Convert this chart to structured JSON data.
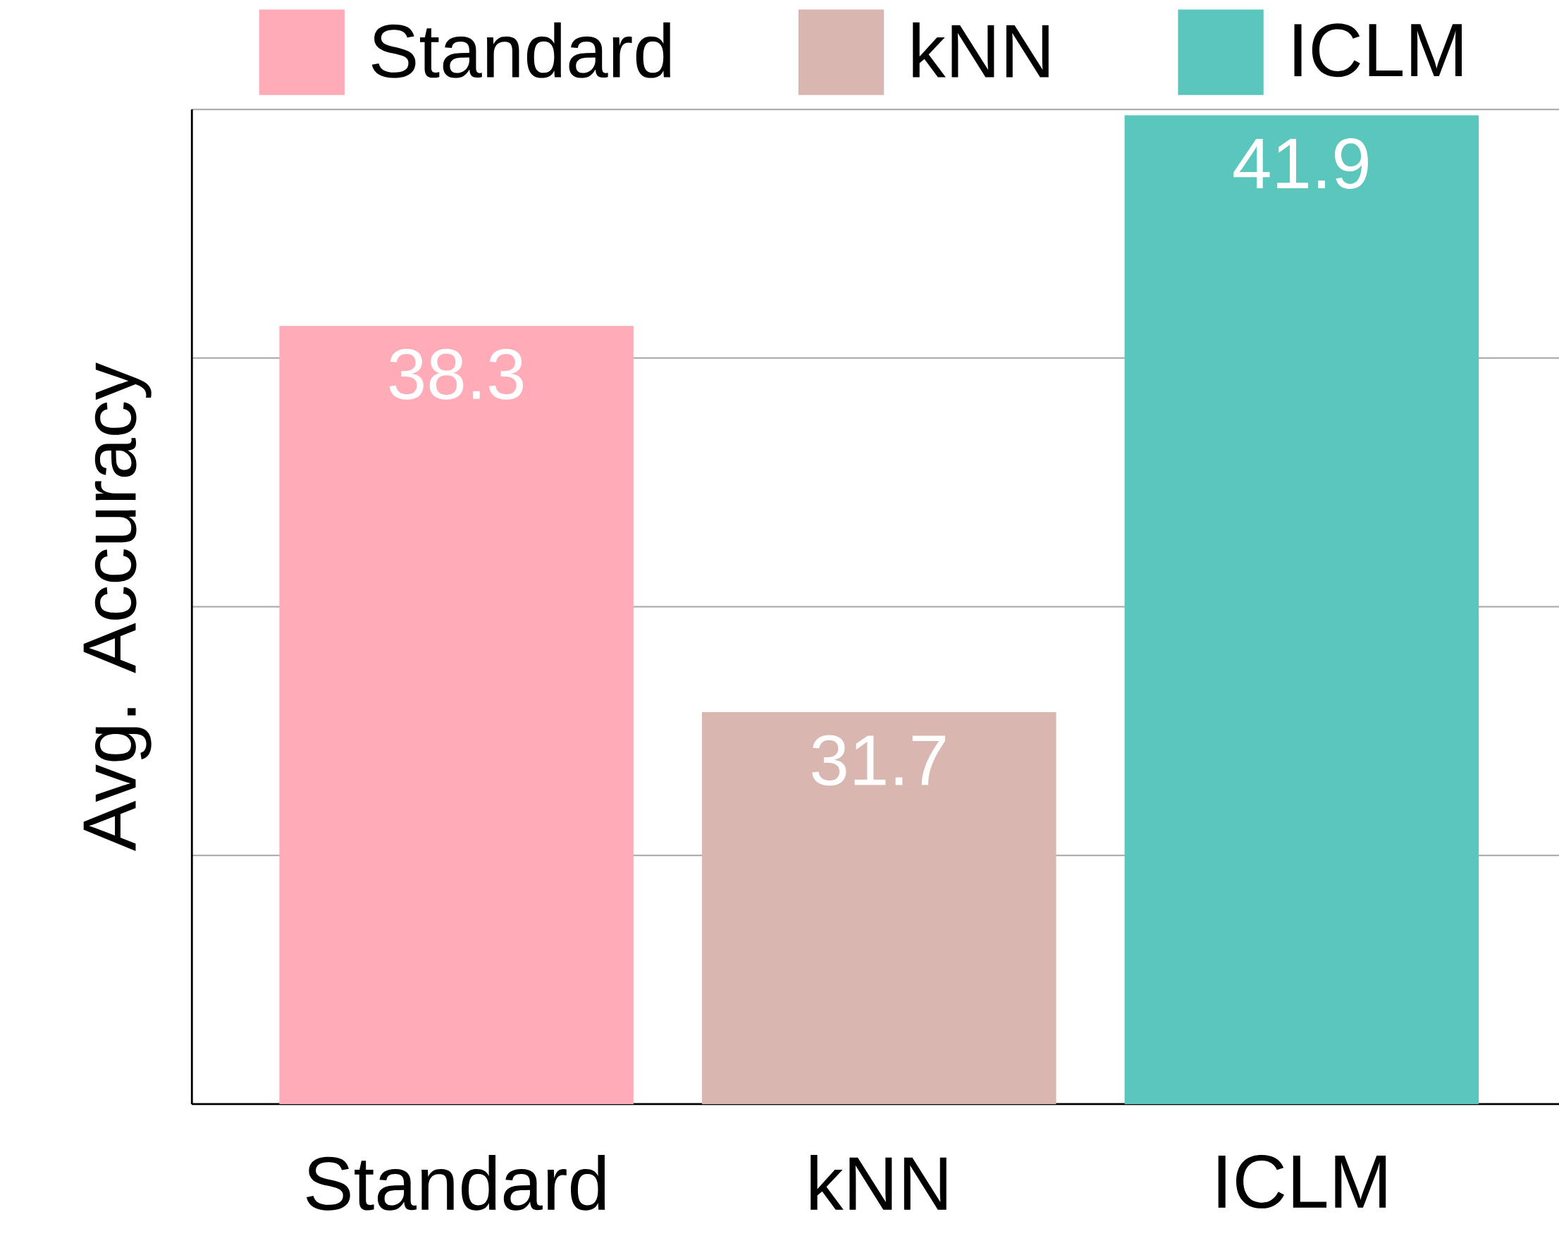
{
  "chart_data": {
    "type": "bar",
    "ylabel": "Avg. Accuracy",
    "categories": [
      "Standard",
      "kNN",
      "ICLM"
    ],
    "series": [
      {
        "name": "Standard",
        "color": "#ffabb8",
        "values": [
          38.3,
          null,
          null
        ]
      },
      {
        "name": "kNN",
        "color": "#dab6b0",
        "values": [
          null,
          31.7,
          null
        ]
      },
      {
        "name": "ICLM",
        "color": "#5bc7bc",
        "values": [
          null,
          null,
          41.9
        ]
      }
    ],
    "data_labels": true,
    "ylim": [
      25,
      42
    ],
    "yticks": [
      {
        "value": 25,
        "label": null
      },
      {
        "value": 29.25,
        "label": null
      },
      {
        "value": 33.5,
        "label": null
      },
      {
        "value": 37.75,
        "label": null
      },
      {
        "value": 42,
        "label": null
      }
    ],
    "tick_labels": "x",
    "grid": "y",
    "legend": "top"
  }
}
